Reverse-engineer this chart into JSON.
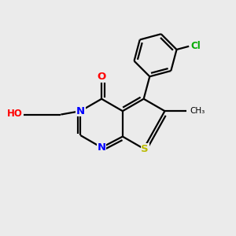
{
  "background_color": "#ebebeb",
  "atom_colors": {
    "C": "#000000",
    "N": "#0000ff",
    "O": "#ff0000",
    "S": "#bbbb00",
    "Cl": "#00aa00",
    "H": "#777777"
  }
}
